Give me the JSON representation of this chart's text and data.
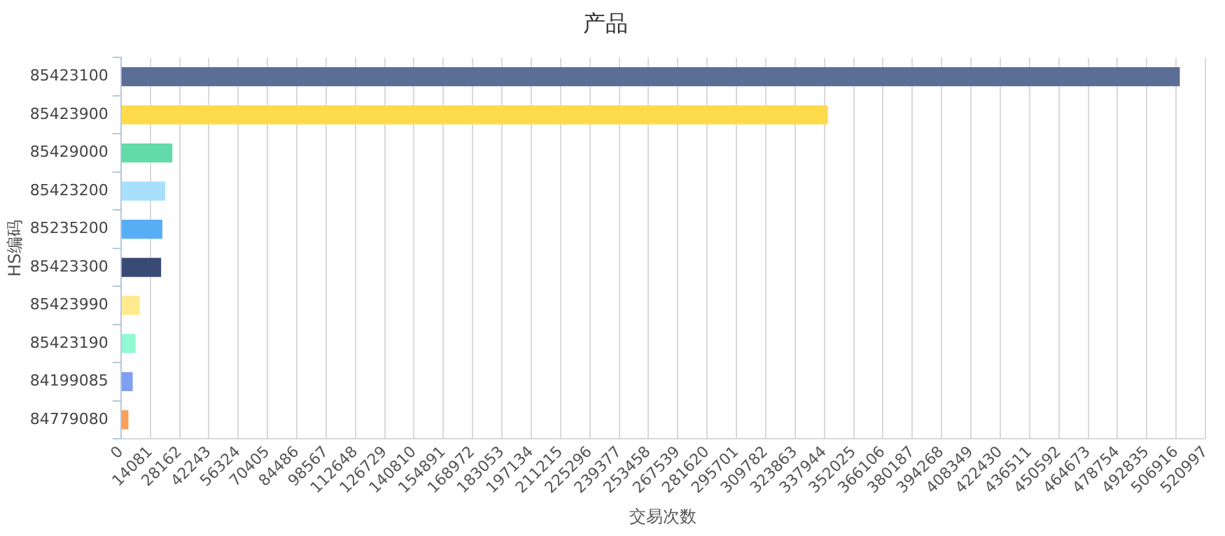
{
  "chart_data": {
    "type": "bar",
    "orientation": "horizontal",
    "title": "产品",
    "xlabel": "交易次数",
    "ylabel": "HS编码",
    "categories": [
      "85423100",
      "85423900",
      "85429000",
      "85423200",
      "85235200",
      "85423300",
      "85423990",
      "85423190",
      "84199085",
      "84779080"
    ],
    "values": [
      508700,
      339600,
      24700,
      21300,
      19900,
      19300,
      9050,
      7000,
      5650,
      3600
    ],
    "colors": [
      "#5b6e96",
      "#ffdb4c",
      "#63dba8",
      "#a8e0fc",
      "#58aef5",
      "#394a75",
      "#ffea8f",
      "#91f8d4",
      "#7f9ff0",
      "#f9a05a"
    ],
    "xlim": [
      0,
      520997
    ],
    "xticks": [
      0,
      14081,
      28162,
      42243,
      56324,
      70405,
      84486,
      98567,
      112648,
      126729,
      140810,
      154891,
      168972,
      183053,
      197134,
      211215,
      225296,
      239377,
      253458,
      267539,
      281620,
      295701,
      309782,
      323863,
      337944,
      352025,
      366106,
      380187,
      394268,
      408349,
      422430,
      436511,
      450592,
      464673,
      478754,
      492835,
      506916,
      520997
    ],
    "grid": "x",
    "legend": false
  }
}
